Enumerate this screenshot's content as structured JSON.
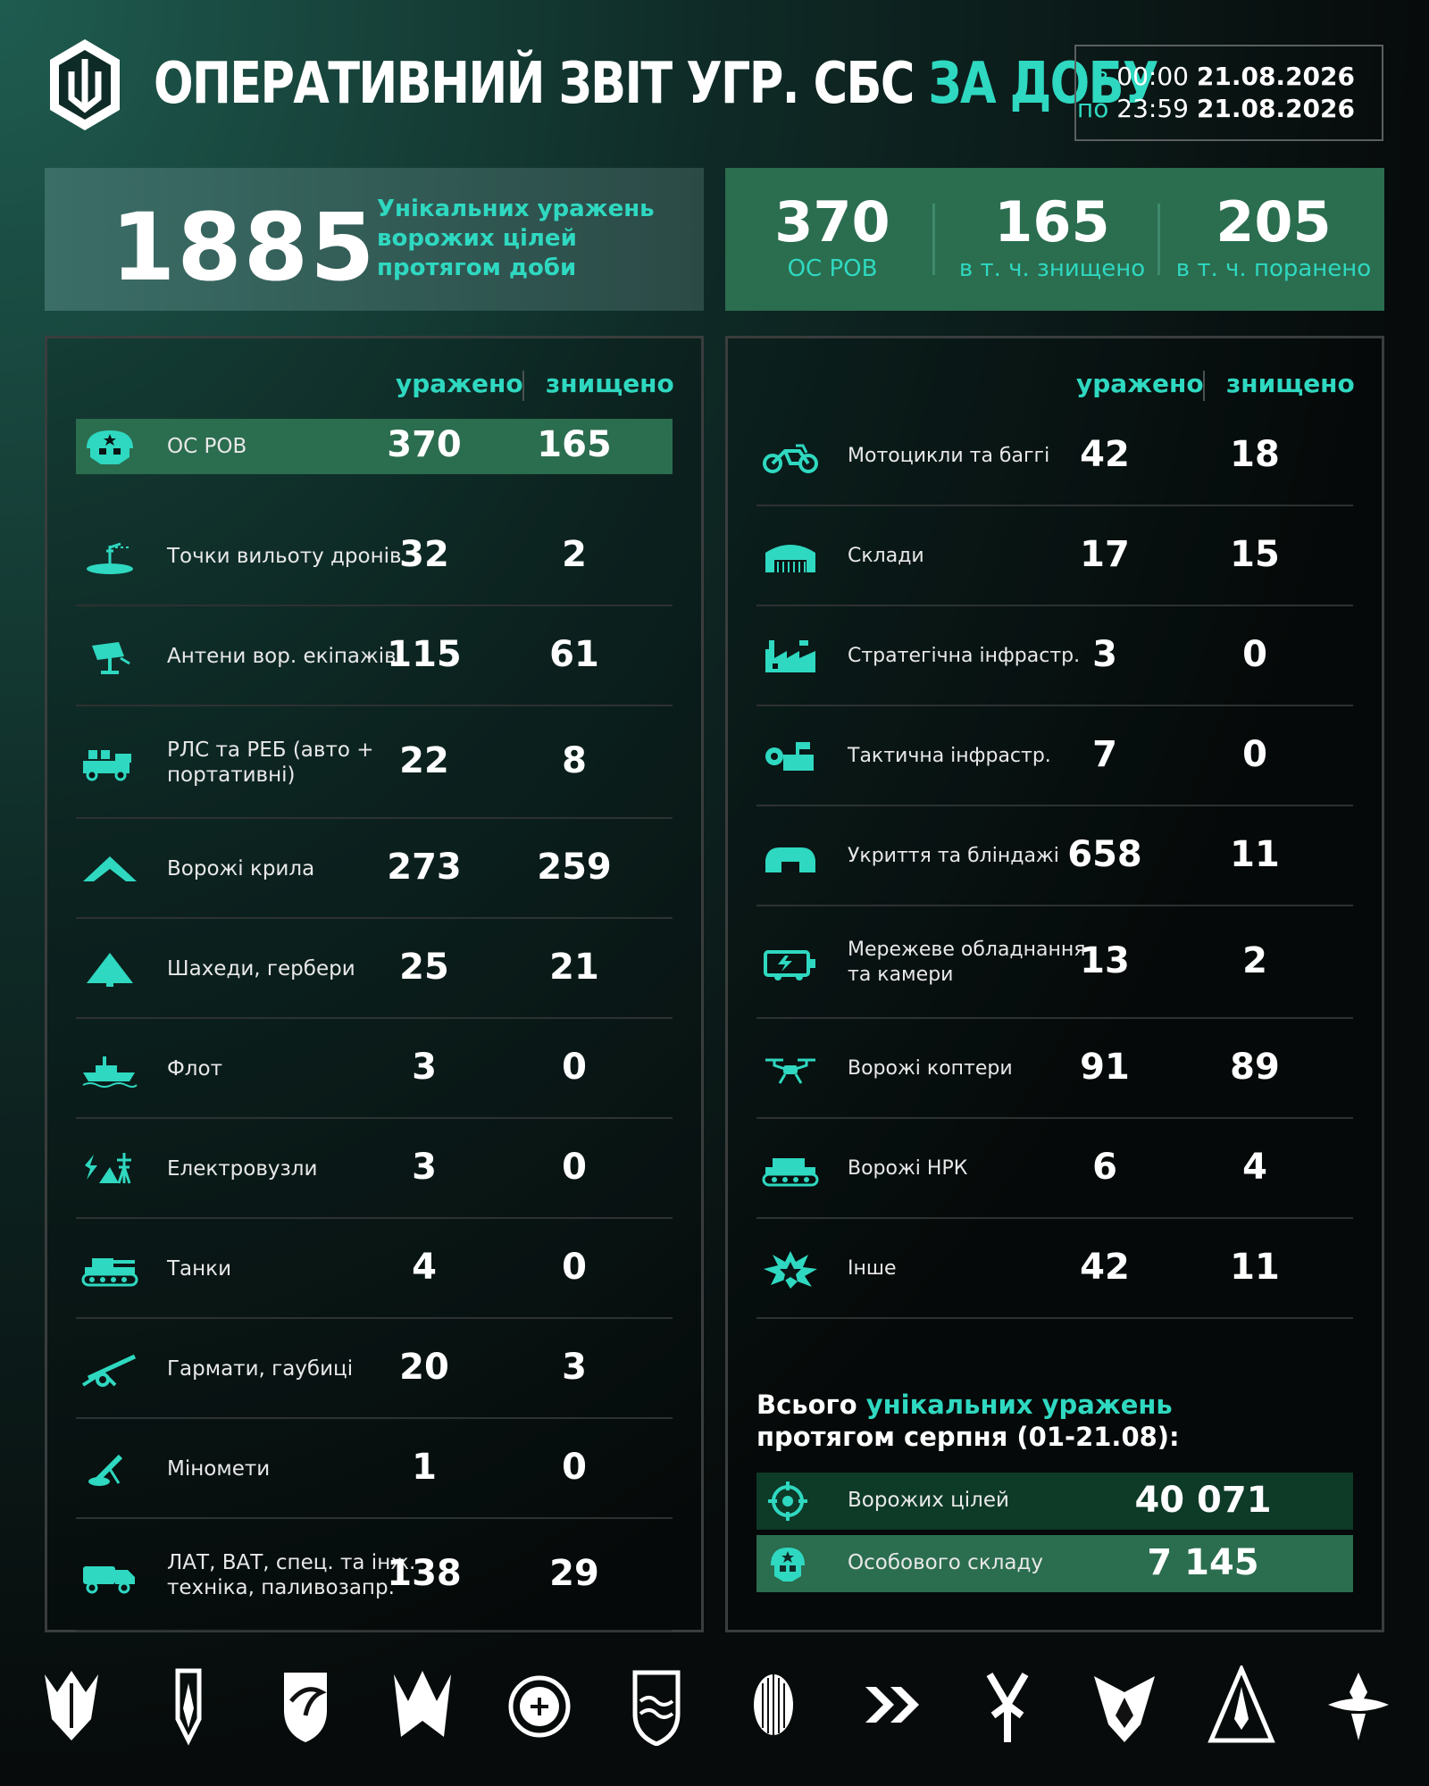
{
  "header": {
    "title_main": "ОПЕРАТИВНИЙ ЗВІТ УГР. СБС",
    "title_accent": "ЗА ДОБУ",
    "date_from_label": "з",
    "date_from_time": "00:00",
    "date_from_date": "21.08.2026",
    "date_to_label": "по",
    "date_to_time": "23:59",
    "date_to_date": "21.08.2026"
  },
  "summary": {
    "unique_hits": "1885",
    "unique_hits_desc_1": "Унікальних уражень",
    "unique_hits_desc_2": "ворожих цілей",
    "unique_hits_desc_3": "протягом доби",
    "personnel": [
      {
        "value": "370",
        "label": "ОС РОВ"
      },
      {
        "value": "165",
        "label": "в т. ч. знищено"
      },
      {
        "value": "205",
        "label": "в т. ч. поранено"
      }
    ]
  },
  "columns": {
    "hit": "уражено",
    "destroyed": "знищено"
  },
  "left_rows": [
    {
      "label": "ОС РОВ",
      "hit": "370",
      "destroyed": "165",
      "icon": "soldier-icon"
    },
    {
      "label": "Точки вильоту дронів",
      "hit": "32",
      "destroyed": "2",
      "icon": "launch-point-icon"
    },
    {
      "label": "Антени вор. екіпажів",
      "hit": "115",
      "destroyed": "61",
      "icon": "antenna-icon"
    },
    {
      "label": "РЛС та РЕБ (авто +",
      "label2": "портативні)",
      "hit": "22",
      "destroyed": "8",
      "icon": "radar-truck-icon"
    },
    {
      "label": "Ворожі крила",
      "hit": "273",
      "destroyed": "259",
      "icon": "wing-icon"
    },
    {
      "label": "Шахеди, гербери",
      "hit": "25",
      "destroyed": "21",
      "icon": "shahed-icon"
    },
    {
      "label": "Флот",
      "hit": "3",
      "destroyed": "0",
      "icon": "ship-icon"
    },
    {
      "label": "Електровузли",
      "hit": "3",
      "destroyed": "0",
      "icon": "power-node-icon"
    },
    {
      "label": "Танки",
      "hit": "4",
      "destroyed": "0",
      "icon": "tank-icon"
    },
    {
      "label": "Гармати, гаубиці",
      "hit": "20",
      "destroyed": "3",
      "icon": "howitzer-icon"
    },
    {
      "label": "Міномети",
      "hit": "1",
      "destroyed": "0",
      "icon": "mortar-icon"
    },
    {
      "label": "ЛАТ, ВАТ, спец. та інж.",
      "label2": "техніка, паливозапр.",
      "hit": "138",
      "destroyed": "29",
      "icon": "truck-icon"
    }
  ],
  "right_rows": [
    {
      "label": "Мотоцикли та баггі",
      "hit": "42",
      "destroyed": "18",
      "icon": "motorcycle-icon"
    },
    {
      "label": "Склади",
      "hit": "17",
      "destroyed": "15",
      "icon": "warehouse-icon"
    },
    {
      "label": "Стратегічна інфрастр.",
      "hit": "3",
      "destroyed": "0",
      "icon": "factory-icon"
    },
    {
      "label": "Тактична інфрастр.",
      "hit": "7",
      "destroyed": "0",
      "icon": "tactical-infra-icon"
    },
    {
      "label": "Укриття та бліндажі",
      "hit": "658",
      "destroyed": "11",
      "icon": "bunker-icon"
    },
    {
      "label": "Мережеве обладнання",
      "label2": "та камери",
      "hit": "13",
      "destroyed": "2",
      "icon": "network-equipment-icon"
    },
    {
      "label": "Ворожі коптери",
      "hit": "91",
      "destroyed": "89",
      "icon": "copter-icon"
    },
    {
      "label": "Ворожі НРК",
      "hit": "6",
      "destroyed": "4",
      "icon": "ugv-icon"
    },
    {
      "label": "Інше",
      "hit": "42",
      "destroyed": "11",
      "icon": "explosion-icon"
    }
  ],
  "totals": {
    "title_1a": "Всього ",
    "title_1b": "унікальних уражень",
    "title_2": "протягом серпня (01-21.08):",
    "rows": [
      {
        "label": "Ворожих цілей",
        "value": "40 071",
        "icon": "target-icon"
      },
      {
        "label": "Особового складу",
        "value": "7 145",
        "icon": "soldier-icon"
      }
    ]
  },
  "colors": {
    "accent": "#2fd8c0",
    "highlight": "#2b6d4f",
    "background": "#070b0b"
  }
}
